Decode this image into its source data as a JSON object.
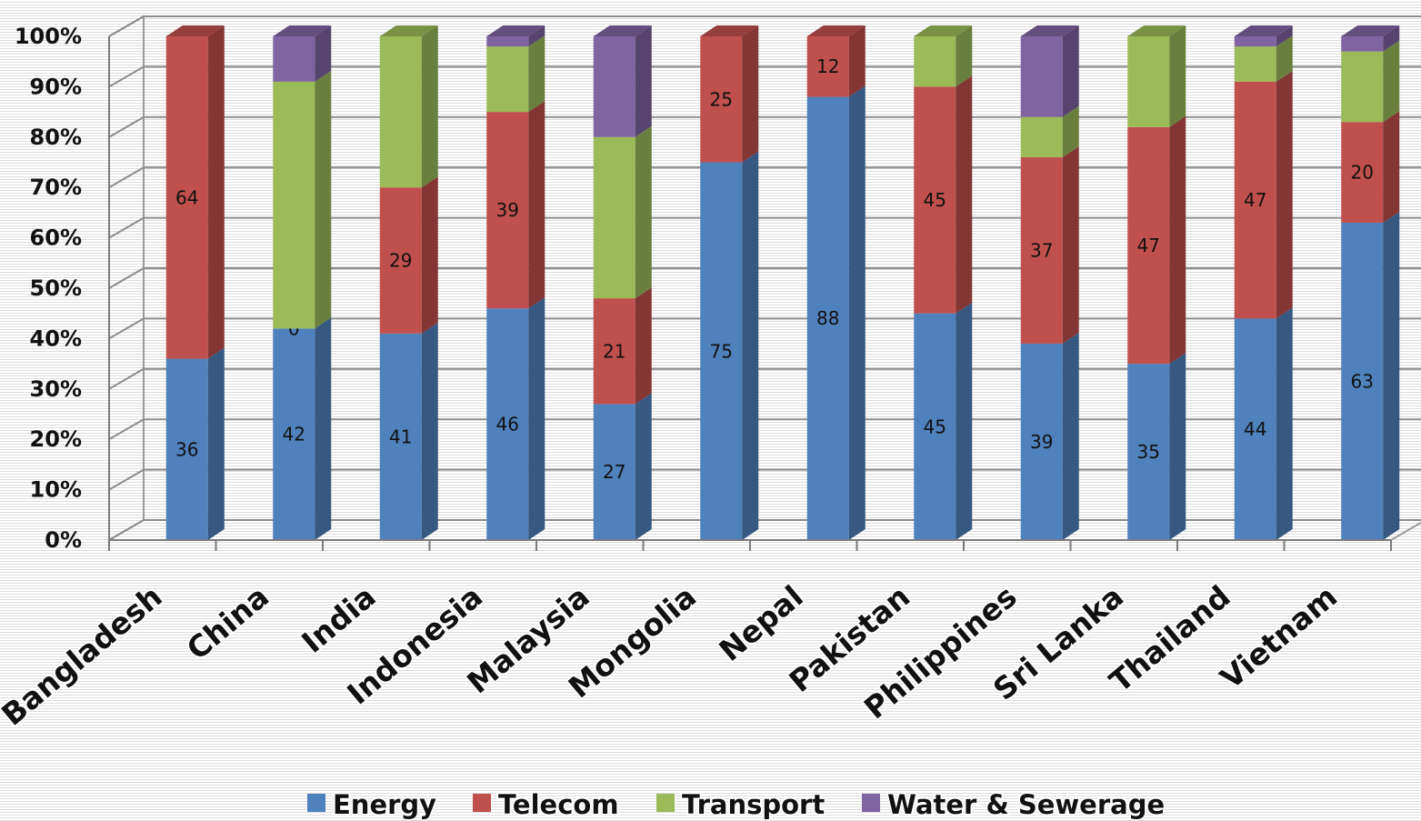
{
  "chart_data": {
    "type": "bar",
    "stacked": "percent",
    "three_d": true,
    "categories": [
      "Bangladesh",
      "China",
      "India",
      "Indonesia",
      "Malaysia",
      "Mongolia",
      "Nepal",
      "Pakistan",
      "Philippines",
      "Sri Lanka",
      "Thailand",
      "Vietnam"
    ],
    "series": [
      {
        "name": "Energy",
        "color": "#4f81bd",
        "values": [
          36,
          42,
          41,
          46,
          27,
          75,
          88,
          45,
          39,
          35,
          44,
          63
        ],
        "labels": [
          "36",
          "42",
          "41",
          "46",
          "27",
          "75",
          "88",
          "45",
          "39",
          "35",
          "44",
          "63"
        ]
      },
      {
        "name": "Telecom",
        "color": "#c0504d",
        "values": [
          64,
          0,
          29,
          39,
          21,
          25,
          12,
          45,
          37,
          47,
          47,
          20
        ],
        "labels": [
          "64",
          "0",
          "29",
          "39",
          "21",
          "25",
          "12",
          "45",
          "37",
          "47",
          "47",
          "20"
        ]
      },
      {
        "name": "Transport",
        "color": "#9bbb59",
        "values": [
          0,
          49,
          30,
          13,
          32,
          0,
          0,
          10,
          8,
          18,
          7,
          14
        ],
        "labels": [
          "",
          "",
          "",
          "",
          "",
          "",
          "",
          "",
          "",
          "",
          "",
          ""
        ]
      },
      {
        "name": "Water & Sewerage",
        "color": "#8064a2",
        "values": [
          0,
          9,
          0,
          2,
          20,
          0,
          0,
          0,
          16,
          0,
          2,
          3
        ],
        "labels": [
          "",
          "",
          "",
          "",
          "",
          "",
          "",
          "",
          "",
          "",
          "",
          ""
        ]
      }
    ],
    "yticks": [
      "0%",
      "10%",
      "20%",
      "30%",
      "40%",
      "50%",
      "60%",
      "70%",
      "80%",
      "90%",
      "100%"
    ],
    "ylim": [
      0,
      100
    ],
    "grid": true,
    "legend_position": "bottom"
  }
}
